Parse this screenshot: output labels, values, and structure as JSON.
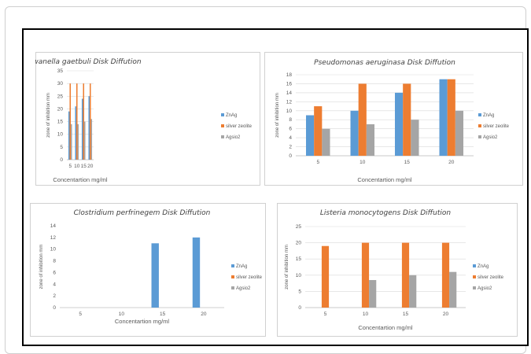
{
  "colors": {
    "series": [
      "#5b9bd5",
      "#ed7d31",
      "#a5a5a5"
    ],
    "grid": "#d9d9d9",
    "panel_border": "#d0d0d0"
  },
  "chart_data": [
    {
      "type": "bar",
      "title": "Shewanella gaetbuli Disk Diffution",
      "xlabel": "Concentartion mg/ml",
      "ylabel": "zone of inhibition mm",
      "categories": [
        "5",
        "10",
        "15",
        "20"
      ],
      "ylim": [
        0,
        35
      ],
      "yticks": [
        0,
        5,
        10,
        15,
        20,
        25,
        30,
        35
      ],
      "grid": true,
      "legend_position": "right",
      "series": [
        {
          "name": "ZnAg",
          "values": [
            19,
            21,
            24,
            25
          ]
        },
        {
          "name": "silver zeolite",
          "values": [
            30,
            30,
            30,
            30
          ]
        },
        {
          "name": "Agsio2",
          "values": [
            14,
            14,
            15,
            16
          ]
        }
      ]
    },
    {
      "type": "bar",
      "title": "Pseudomonas aeruginasa Disk Diffution",
      "xlabel": "Concentartion mg/ml",
      "ylabel": "zone of inhibition mm",
      "categories": [
        "5",
        "10",
        "15",
        "20"
      ],
      "ylim": [
        0,
        18
      ],
      "yticks": [
        0,
        2,
        4,
        6,
        8,
        10,
        12,
        14,
        16,
        18
      ],
      "grid": true,
      "legend_position": "right",
      "series": [
        {
          "name": "ZnAg",
          "values": [
            9,
            10,
            14,
            17
          ]
        },
        {
          "name": "silver zeolite",
          "values": [
            11,
            16,
            16,
            17
          ]
        },
        {
          "name": "Agsio2",
          "values": [
            6,
            7,
            8,
            10
          ]
        }
      ]
    },
    {
      "type": "bar",
      "title": "Clostridium perfrinegem Disk Diffution",
      "xlabel": "Concentartion mg/ml",
      "ylabel": "zone of inhibition mm",
      "categories": [
        "5",
        "10",
        "15",
        "20"
      ],
      "ylim": [
        0,
        14
      ],
      "yticks": [
        0,
        2,
        4,
        6,
        8,
        10,
        12,
        14
      ],
      "grid": false,
      "legend_position": "right",
      "series": [
        {
          "name": "ZnAg",
          "values": [
            0,
            0,
            11,
            12
          ]
        },
        {
          "name": "silver zeolite",
          "values": [
            0,
            0,
            0,
            0
          ]
        },
        {
          "name": "Agsio2",
          "values": [
            0,
            0,
            0,
            0
          ]
        }
      ]
    },
    {
      "type": "bar",
      "title": "Listeria monocytogens Disk Diffution",
      "xlabel": "Concentartion mg/ml",
      "ylabel": "zone of inhibition mm",
      "categories": [
        "5",
        "10",
        "15",
        "20"
      ],
      "ylim": [
        0,
        25
      ],
      "yticks": [
        0,
        5,
        10,
        15,
        20,
        25
      ],
      "grid": true,
      "legend_position": "right",
      "series": [
        {
          "name": "ZnAg",
          "values": [
            0,
            0,
            0,
            0
          ]
        },
        {
          "name": "silver zeolite",
          "values": [
            19,
            20,
            20,
            20
          ]
        },
        {
          "name": "Agsio2",
          "values": [
            0,
            8.5,
            10,
            11
          ]
        }
      ]
    }
  ]
}
